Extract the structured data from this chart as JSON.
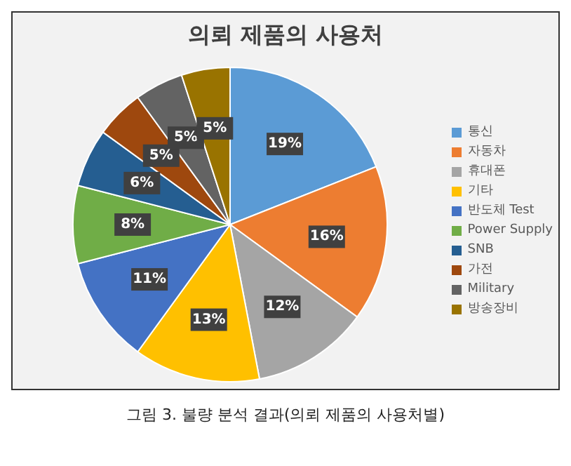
{
  "chart_data": {
    "type": "pie",
    "title": "의뢰 제품의 사용처",
    "categories": [
      "통신",
      "자동차",
      "휴대폰",
      "기타",
      "반도체 Test",
      "Power Supply",
      "SNB",
      "가전",
      "Military",
      "방송장비"
    ],
    "values": [
      19,
      16,
      12,
      13,
      11,
      8,
      6,
      5,
      5,
      5
    ],
    "colors": [
      "#5b9bd5",
      "#ed7d31",
      "#a5a5a5",
      "#ffc000",
      "#4472c4",
      "#70ad47",
      "#255e91",
      "#9e480e",
      "#636363",
      "#997300"
    ],
    "value_labels": [
      "19%",
      "16%",
      "12%",
      "13%",
      "11%",
      "8%",
      "6%",
      "5%",
      "5%",
      "5%"
    ],
    "legend": "right",
    "annotations": [
      "그림 3. 불량 분석 결과(의뢰 제품의 사용처별)"
    ]
  }
}
